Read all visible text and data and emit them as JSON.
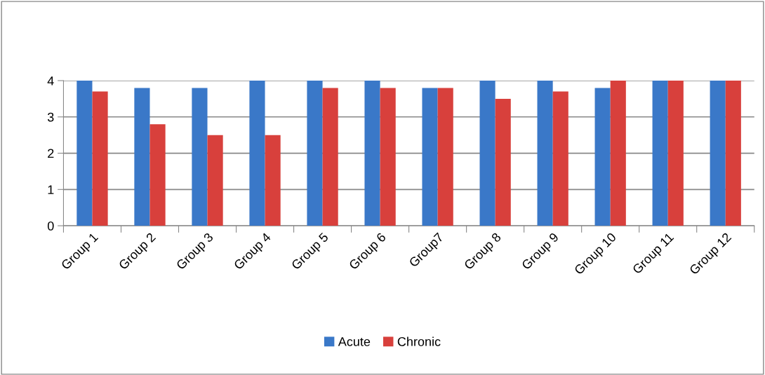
{
  "chart_data": {
    "type": "bar",
    "categories": [
      "Group 1",
      "Group 2",
      "Group 3",
      "Group 4",
      "Group 5",
      "Group 6",
      "Group7",
      "Group 8",
      "Group 9",
      "Group 10",
      "Group 11",
      "Group 12"
    ],
    "series": [
      {
        "name": "Acute",
        "color": "#3a78c8",
        "values": [
          4,
          3.8,
          3.8,
          4,
          4,
          4,
          3.8,
          4,
          4,
          3.8,
          4,
          4
        ]
      },
      {
        "name": "Chronic",
        "color": "#d8403c",
        "values": [
          3.7,
          2.8,
          2.5,
          2.5,
          3.8,
          3.8,
          3.8,
          3.5,
          3.7,
          4,
          4,
          4
        ]
      }
    ],
    "ylim": [
      0,
      4
    ],
    "yticks": [
      0,
      1,
      2,
      3,
      4
    ],
    "grid": "y",
    "legend": "bottom"
  }
}
